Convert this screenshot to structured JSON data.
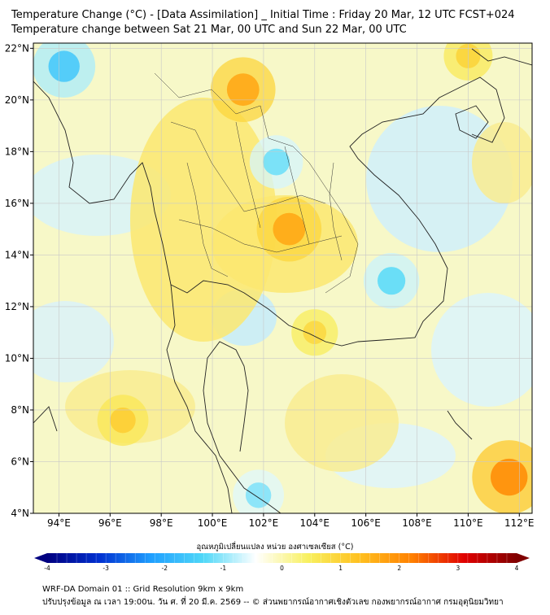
{
  "title": {
    "line1": "Temperature Change (°C) - [Data Assimilation] _ Initial Time : Friday 20 Mar, 12 UTC FCST+024",
    "line2": "Temperature change between Sat 21 Mar, 00 UTC and Sun 22 Mar, 00 UTC"
  },
  "map": {
    "lon_range": [
      93,
      112.5
    ],
    "lat_range": [
      4,
      22.2
    ],
    "lat_ticks": [
      "22°N",
      "20°N",
      "18°N",
      "16°N",
      "14°N",
      "12°N",
      "10°N",
      "8°N",
      "6°N",
      "4°N"
    ],
    "lon_ticks": [
      "94°E",
      "96°E",
      "98°E",
      "100°E",
      "102°E",
      "104°E",
      "106°E",
      "108°E",
      "110°E",
      "112°E"
    ],
    "anomalies": [
      {
        "lon": 94.2,
        "lat": 21.3,
        "value": -1.6
      },
      {
        "lon": 101.2,
        "lat": 20.4,
        "value": 1.7
      },
      {
        "lon": 103.0,
        "lat": 15.0,
        "value": 1.7
      },
      {
        "lon": 111.6,
        "lat": 5.4,
        "value": 2.1
      },
      {
        "lon": 102.5,
        "lat": 17.6,
        "value": -1.2
      },
      {
        "lon": 107.0,
        "lat": 13.0,
        "value": -1.3
      },
      {
        "lon": 101.8,
        "lat": 4.7,
        "value": -1.1
      },
      {
        "lon": 96.5,
        "lat": 7.6,
        "value": 1.1
      },
      {
        "lon": 104.0,
        "lat": 11.0,
        "value": 0.9
      },
      {
        "lon": 110.0,
        "lat": 21.7,
        "value": 1.0
      }
    ]
  },
  "colorbar": {
    "label": "อุณหภูมิเปลี่ยนแปลง หน่วย องศาเซลเซียส (°C)",
    "ticks": [
      "-4",
      "-3",
      "-2",
      "-1",
      "0",
      "1",
      "2",
      "3",
      "4"
    ],
    "range": [
      -4,
      4
    ],
    "colors": [
      "#000080",
      "#0030d0",
      "#20a0ff",
      "#50d8f8",
      "#ffffff",
      "#f8f060",
      "#ffc020",
      "#ff8000",
      "#e00000",
      "#800000"
    ]
  },
  "footer": {
    "line1": "WRF-DA Domain 01 :: Grid Resolution 9km x 9km",
    "line2": "ปรับปรุงข้อมูล ณ เวลา 19:00น. วัน ศ. ที่ 20 มี.ค. 2569 -- © ส่วนพยากรณ์อากาศเชิงตัวเลข กองพยากรณ์อากาศ กรมอุตุนิยมวิทยา"
  }
}
